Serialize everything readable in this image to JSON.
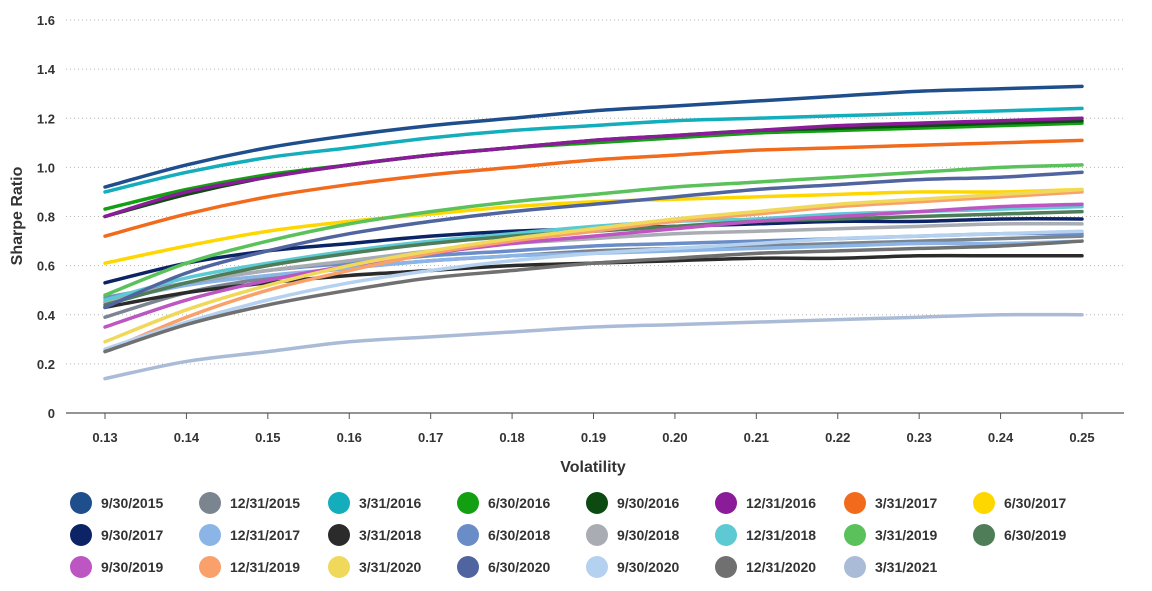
{
  "chart_data": {
    "type": "line",
    "title": "",
    "xlabel": "Volatility",
    "ylabel": "Sharpe Ratio",
    "x": [
      0.13,
      0.14,
      0.15,
      0.16,
      0.17,
      0.18,
      0.19,
      0.2,
      0.21,
      0.22,
      0.23,
      0.24,
      0.25
    ],
    "x_tick_labels": [
      "0.13",
      "0.14",
      "0.15",
      "0.16",
      "0.17",
      "0.18",
      "0.19",
      "0.20",
      "0.21",
      "0.22",
      "0.23",
      "0.24",
      "0.25"
    ],
    "ylim": [
      0,
      1.6
    ],
    "y_ticks": [
      0,
      0.2,
      0.4,
      0.6,
      0.8,
      1.0,
      1.2,
      1.4,
      1.6
    ],
    "y_tick_labels": [
      "0",
      "0.2",
      "0.4",
      "0.6",
      "0.8",
      "1.0",
      "1.2",
      "1.4",
      "1.6"
    ],
    "grid": "horizontal dotted",
    "legend_position": "bottom",
    "series": [
      {
        "name": "9/30/2015",
        "color": "#1f4e8c",
        "values": [
          0.92,
          1.01,
          1.08,
          1.13,
          1.17,
          1.2,
          1.23,
          1.25,
          1.27,
          1.29,
          1.31,
          1.32,
          1.33
        ]
      },
      {
        "name": "12/31/2015",
        "color": "#7a8590",
        "values": [
          0.39,
          0.49,
          0.55,
          0.59,
          0.62,
          0.64,
          0.66,
          0.67,
          0.68,
          0.69,
          0.7,
          0.71,
          0.72
        ]
      },
      {
        "name": "3/31/2016",
        "color": "#13adbb",
        "values": [
          0.9,
          0.98,
          1.04,
          1.08,
          1.12,
          1.15,
          1.17,
          1.19,
          1.2,
          1.21,
          1.22,
          1.23,
          1.24
        ]
      },
      {
        "name": "6/30/2016",
        "color": "#12a012",
        "values": [
          0.83,
          0.91,
          0.97,
          1.01,
          1.05,
          1.08,
          1.1,
          1.12,
          1.14,
          1.15,
          1.16,
          1.17,
          1.18
        ]
      },
      {
        "name": "9/30/2016",
        "color": "#0c4a12",
        "values": [
          0.8,
          0.89,
          0.96,
          1.01,
          1.05,
          1.08,
          1.11,
          1.13,
          1.15,
          1.16,
          1.17,
          1.18,
          1.19
        ]
      },
      {
        "name": "12/31/2016",
        "color": "#8a1c9a",
        "values": [
          0.8,
          0.9,
          0.96,
          1.01,
          1.05,
          1.08,
          1.11,
          1.13,
          1.15,
          1.17,
          1.18,
          1.19,
          1.2
        ]
      },
      {
        "name": "3/31/2017",
        "color": "#f26b1d",
        "values": [
          0.72,
          0.81,
          0.88,
          0.93,
          0.97,
          1.0,
          1.03,
          1.05,
          1.07,
          1.08,
          1.09,
          1.1,
          1.11
        ]
      },
      {
        "name": "6/30/2017",
        "color": "#ffd700",
        "values": [
          0.61,
          0.68,
          0.74,
          0.78,
          0.81,
          0.84,
          0.86,
          0.87,
          0.88,
          0.89,
          0.9,
          0.9,
          0.91
        ]
      },
      {
        "name": "9/30/2017",
        "color": "#0c2466",
        "values": [
          0.53,
          0.61,
          0.66,
          0.69,
          0.72,
          0.74,
          0.75,
          0.76,
          0.77,
          0.78,
          0.78,
          0.79,
          0.79
        ]
      },
      {
        "name": "12/31/2017",
        "color": "#8ab5e6",
        "values": [
          0.45,
          0.52,
          0.56,
          0.59,
          0.62,
          0.64,
          0.65,
          0.66,
          0.67,
          0.68,
          0.69,
          0.69,
          0.7
        ]
      },
      {
        "name": "3/31/2018",
        "color": "#2b2b2b",
        "values": [
          0.43,
          0.49,
          0.53,
          0.56,
          0.58,
          0.6,
          0.61,
          0.62,
          0.63,
          0.63,
          0.64,
          0.64,
          0.64
        ]
      },
      {
        "name": "6/30/2018",
        "color": "#6a8cc7",
        "values": [
          0.47,
          0.53,
          0.58,
          0.61,
          0.64,
          0.66,
          0.68,
          0.69,
          0.7,
          0.71,
          0.72,
          0.73,
          0.73
        ]
      },
      {
        "name": "9/30/2018",
        "color": "#a9adb3",
        "values": [
          0.45,
          0.53,
          0.58,
          0.62,
          0.66,
          0.69,
          0.71,
          0.73,
          0.74,
          0.75,
          0.76,
          0.77,
          0.77
        ]
      },
      {
        "name": "12/31/2018",
        "color": "#5cc9d3",
        "values": [
          0.46,
          0.55,
          0.61,
          0.66,
          0.7,
          0.73,
          0.76,
          0.78,
          0.79,
          0.81,
          0.82,
          0.83,
          0.84
        ]
      },
      {
        "name": "3/31/2019",
        "color": "#5bc15b",
        "values": [
          0.48,
          0.61,
          0.7,
          0.77,
          0.82,
          0.86,
          0.89,
          0.92,
          0.94,
          0.96,
          0.98,
          1.0,
          1.01
        ]
      },
      {
        "name": "6/30/2019",
        "color": "#4f7d58",
        "values": [
          0.44,
          0.53,
          0.6,
          0.65,
          0.69,
          0.72,
          0.74,
          0.76,
          0.78,
          0.79,
          0.8,
          0.81,
          0.82
        ]
      },
      {
        "name": "9/30/2019",
        "color": "#bd56c2",
        "values": [
          0.35,
          0.46,
          0.54,
          0.6,
          0.65,
          0.69,
          0.72,
          0.75,
          0.78,
          0.8,
          0.82,
          0.84,
          0.85
        ]
      },
      {
        "name": "12/31/2019",
        "color": "#f9a06b",
        "values": [
          0.25,
          0.39,
          0.5,
          0.58,
          0.65,
          0.7,
          0.74,
          0.78,
          0.81,
          0.84,
          0.86,
          0.88,
          0.9
        ]
      },
      {
        "name": "3/31/2020",
        "color": "#f0d95a",
        "values": [
          0.29,
          0.42,
          0.52,
          0.6,
          0.66,
          0.71,
          0.75,
          0.79,
          0.82,
          0.85,
          0.87,
          0.89,
          0.91
        ]
      },
      {
        "name": "6/30/2020",
        "color": "#5064a0",
        "values": [
          0.43,
          0.57,
          0.66,
          0.73,
          0.78,
          0.82,
          0.85,
          0.88,
          0.91,
          0.93,
          0.95,
          0.96,
          0.98
        ]
      },
      {
        "name": "9/30/2020",
        "color": "#b5d1f0",
        "values": [
          0.26,
          0.37,
          0.46,
          0.53,
          0.58,
          0.62,
          0.65,
          0.67,
          0.69,
          0.71,
          0.72,
          0.73,
          0.74
        ]
      },
      {
        "name": "12/31/2020",
        "color": "#707070",
        "values": [
          0.25,
          0.36,
          0.44,
          0.5,
          0.55,
          0.58,
          0.61,
          0.63,
          0.65,
          0.66,
          0.67,
          0.68,
          0.7
        ]
      },
      {
        "name": "3/31/2021",
        "color": "#aabbd8",
        "values": [
          0.14,
          0.21,
          0.25,
          0.29,
          0.31,
          0.33,
          0.35,
          0.36,
          0.37,
          0.38,
          0.39,
          0.4,
          0.4
        ]
      }
    ]
  }
}
